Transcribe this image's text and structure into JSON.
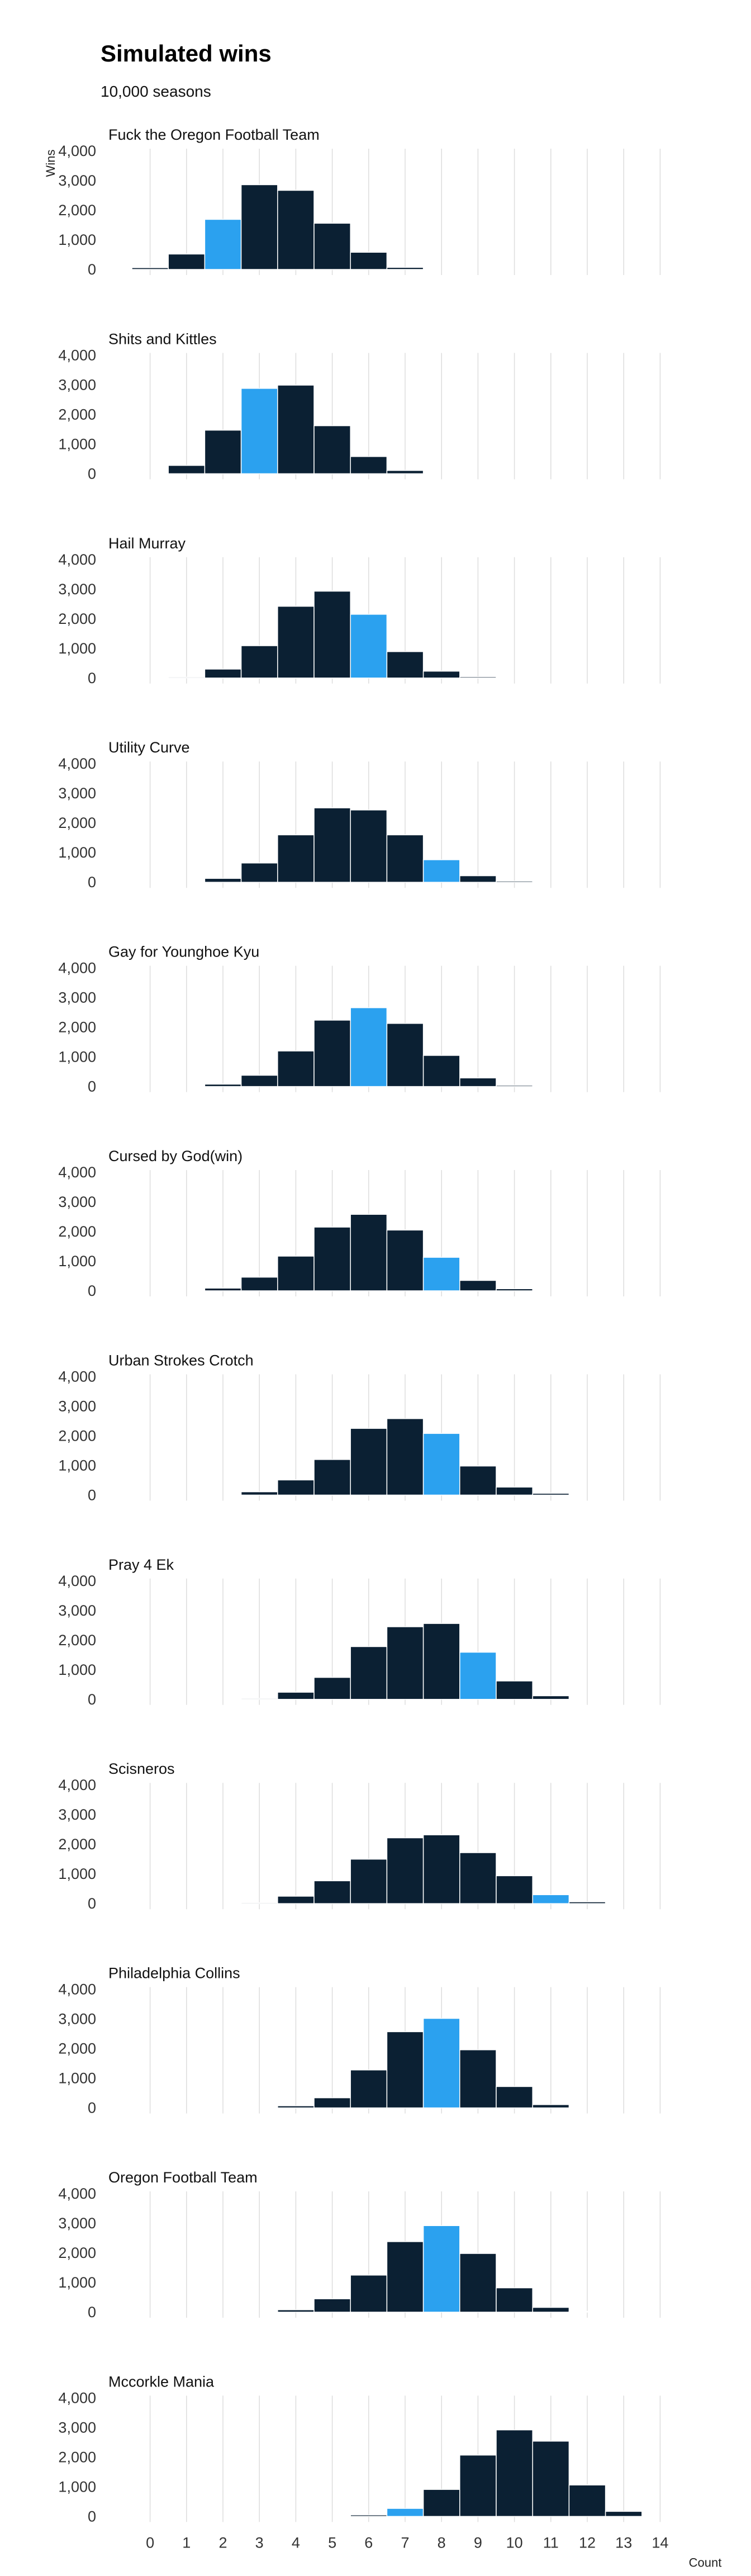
{
  "title": "Simulated wins",
  "subtitle": "10,000 seasons",
  "chart_data": {
    "type": "bar",
    "title": "Simulated wins",
    "subtitle": "10,000 seasons",
    "xlabel": "Count",
    "ylabel": "Wins",
    "x_ticks": [
      "0",
      "1",
      "2",
      "3",
      "4",
      "5",
      "6",
      "7",
      "8",
      "9",
      "10",
      "11",
      "12",
      "13",
      "14"
    ],
    "x_range": [
      -0.5,
      14.5
    ],
    "ylim": [
      0,
      4000
    ],
    "y_ticks": [
      "0",
      "1,000",
      "2,000",
      "3,000",
      "4,000"
    ],
    "grid": "vertical",
    "colors": {
      "bar": "#0b2033",
      "highlight": "#2ba1ef",
      "grid": "#dddddd",
      "bar_edge": "#ffffff"
    },
    "panels": [
      {
        "title": "Fuck the Oregon Football Team",
        "highlight": 2,
        "bins": [
          0,
          1,
          2,
          3,
          4,
          5,
          6,
          7
        ],
        "values": [
          60,
          520,
          1690,
          2860,
          2670,
          1560,
          580,
          70
        ]
      },
      {
        "title": "Shits and Kittles",
        "highlight": 3,
        "bins": [
          1,
          2,
          3,
          4,
          5,
          6,
          7
        ],
        "values": [
          280,
          1470,
          2880,
          2990,
          1620,
          580,
          110
        ]
      },
      {
        "title": "Hail Murray",
        "highlight": 6,
        "bins": [
          1,
          2,
          3,
          4,
          5,
          6,
          7,
          8,
          9
        ],
        "values": [
          30,
          300,
          1090,
          2420,
          2930,
          2150,
          890,
          230,
          40
        ]
      },
      {
        "title": "Utility Curve",
        "highlight": 8,
        "bins": [
          2,
          3,
          4,
          5,
          6,
          7,
          8,
          9,
          10
        ],
        "values": [
          130,
          650,
          1600,
          2510,
          2440,
          1600,
          760,
          220,
          40
        ]
      },
      {
        "title": "Gay for Younghoe Kyu",
        "highlight": 6,
        "bins": [
          2,
          3,
          4,
          5,
          6,
          7,
          8,
          9,
          10
        ],
        "values": [
          80,
          380,
          1200,
          2240,
          2660,
          2130,
          1050,
          290,
          40
        ]
      },
      {
        "title": "Cursed by God(win)",
        "highlight": 8,
        "bins": [
          2,
          3,
          4,
          5,
          6,
          7,
          8,
          9,
          10
        ],
        "values": [
          90,
          460,
          1170,
          2150,
          2580,
          2050,
          1130,
          350,
          70
        ]
      },
      {
        "title": "Urban Strokes Crotch",
        "highlight": 8,
        "bins": [
          3,
          4,
          5,
          6,
          7,
          8,
          9,
          10,
          11
        ],
        "values": [
          110,
          510,
          1200,
          2250,
          2580,
          2080,
          980,
          270,
          60
        ]
      },
      {
        "title": "Pray 4 Ek",
        "highlight": 9,
        "bins": [
          3,
          4,
          5,
          6,
          7,
          8,
          9,
          10,
          11
        ],
        "values": [
          30,
          240,
          740,
          1780,
          2450,
          2560,
          1590,
          620,
          120
        ]
      },
      {
        "title": "Scisneros",
        "highlight": 11,
        "bins": [
          3,
          4,
          5,
          6,
          7,
          8,
          9,
          10,
          11,
          12
        ],
        "values": [
          30,
          250,
          770,
          1500,
          2220,
          2320,
          1720,
          940,
          300,
          60
        ]
      },
      {
        "title": "Philadelphia Collins",
        "highlight": 8,
        "bins": [
          4,
          5,
          6,
          7,
          8,
          9,
          10,
          11
        ],
        "values": [
          70,
          340,
          1280,
          2570,
          3020,
          1960,
          720,
          110
        ]
      },
      {
        "title": "Oregon Football Team",
        "highlight": 8,
        "bins": [
          4,
          5,
          6,
          7,
          8,
          9,
          10,
          11,
          12
        ],
        "values": [
          80,
          450,
          1250,
          2380,
          2920,
          1980,
          820,
          160,
          20
        ]
      },
      {
        "title": "Mccorkle Mania",
        "highlight": 7,
        "bins": [
          6,
          7,
          8,
          9,
          10,
          11,
          12,
          13
        ],
        "values": [
          50,
          270,
          910,
          2070,
          2920,
          2540,
          1060,
          170
        ]
      }
    ]
  }
}
